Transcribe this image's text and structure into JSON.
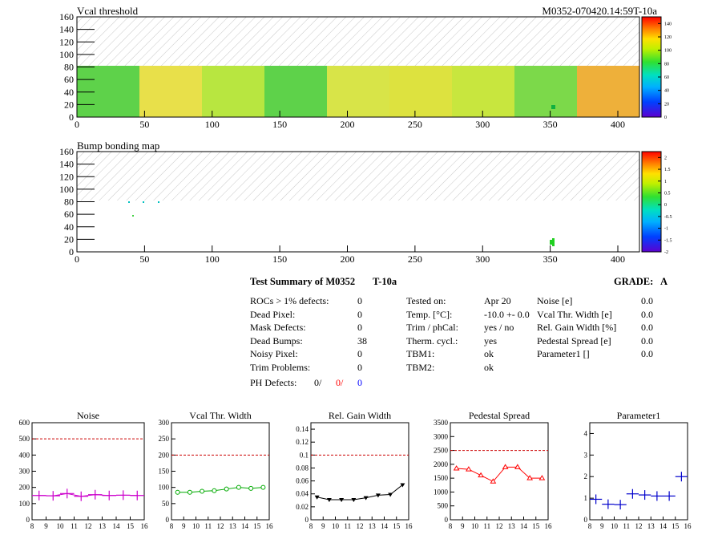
{
  "header_right": "M0352-070420.14:59T-10a",
  "maps": [
    {
      "title": "Vcal threshold",
      "y_ticks": [
        "0",
        "20",
        "40",
        "60",
        "80",
        "100",
        "120",
        "140",
        "160"
      ],
      "x_ticks": [
        "0",
        "50",
        "100",
        "150",
        "200",
        "250",
        "300",
        "350",
        "400"
      ],
      "scale_labels": [
        "0",
        "20",
        "40",
        "60",
        "80",
        "100",
        "120",
        "140"
      ]
    },
    {
      "title": "Bump bonding map",
      "y_ticks": [
        "0",
        "20",
        "40",
        "60",
        "80",
        "100",
        "120",
        "140",
        "160"
      ],
      "x_ticks": [
        "0",
        "50",
        "100",
        "150",
        "200",
        "250",
        "300",
        "350",
        "400"
      ],
      "scale_labels": [
        "-2",
        "-1.5",
        "-1",
        "-0.5",
        "0",
        "0.5",
        "1",
        "1.5",
        "2"
      ]
    }
  ],
  "summary": {
    "title": "Test Summary of M0352",
    "test_id": "T-10a",
    "grade_label": "GRADE:",
    "grade": "A",
    "col1": [
      {
        "label": "ROCs > 1% defects:",
        "value": "0"
      },
      {
        "label": "Dead Pixel:",
        "value": "0"
      },
      {
        "label": "Mask Defects:",
        "value": "0"
      },
      {
        "label": "Dead Bumps:",
        "value": "38"
      },
      {
        "label": "Noisy Pixel:",
        "value": "0"
      },
      {
        "label": "Trim Problems:",
        "value": "0"
      }
    ],
    "ph_defects_label": "PH Defects:",
    "ph_defects": [
      "0/",
      "0/",
      "0"
    ],
    "ph_colors": [
      "#000000",
      "#ff0000",
      "#0000ff"
    ],
    "col2": [
      {
        "label": "Tested on:",
        "value": "Apr 20"
      },
      {
        "label": "Temp. [°C]:",
        "value": "-10.0 +- 0.0"
      },
      {
        "label": "Trim / phCal:",
        "value": "yes / no"
      },
      {
        "label": "Therm. cycl.:",
        "value": "yes"
      },
      {
        "label": "TBM1:",
        "value": "ok"
      },
      {
        "label": "TBM2:",
        "value": "ok"
      }
    ],
    "col3": [
      {
        "label": "Noise [e]",
        "value": "0.0"
      },
      {
        "label": "Vcal Thr. Width [e]",
        "value": "0.0"
      },
      {
        "label": "Rel. Gain Width [%]",
        "value": "0.0"
      },
      {
        "label": "Pedestal Spread [e]",
        "value": "0.0"
      },
      {
        "label": "Parameter1 []",
        "value": "0.0"
      }
    ]
  },
  "chart_data": [
    {
      "type": "line",
      "title": "Noise",
      "color": "#cc00cc",
      "style": "cross",
      "x": [
        8.5,
        9.5,
        10.5,
        11.5,
        12.5,
        13.5,
        14.5,
        15.5
      ],
      "values": [
        150,
        148,
        162,
        145,
        155,
        150,
        152,
        150
      ],
      "xlim": [
        8,
        16
      ],
      "ylim": [
        0,
        600
      ],
      "x_ticks": [
        "8",
        "9",
        "10",
        "11",
        "12",
        "13",
        "14",
        "15",
        "16"
      ],
      "y_ticks": [
        "0",
        "100",
        "200",
        "300",
        "400",
        "500",
        "600"
      ],
      "ref_line": 500
    },
    {
      "type": "line",
      "title": "Vcal Thr. Width",
      "color": "#00aa00",
      "style": "circle",
      "x": [
        8.5,
        9.5,
        10.5,
        11.5,
        12.5,
        13.5,
        14.5,
        15.5
      ],
      "values": [
        85,
        85,
        88,
        90,
        95,
        100,
        97,
        100
      ],
      "xlim": [
        8,
        16
      ],
      "ylim": [
        0,
        300
      ],
      "x_ticks": [
        "8",
        "9",
        "10",
        "11",
        "12",
        "13",
        "14",
        "15",
        "16"
      ],
      "y_ticks": [
        "0",
        "50",
        "100",
        "150",
        "200",
        "250",
        "300"
      ],
      "ref_line": 200
    },
    {
      "type": "line",
      "title": "Rel. Gain Width",
      "color": "#000000",
      "style": "triangle",
      "x": [
        8.5,
        9.5,
        10.5,
        11.5,
        12.5,
        13.5,
        14.5,
        15.5
      ],
      "values": [
        0.035,
        0.031,
        0.031,
        0.031,
        0.034,
        0.038,
        0.039,
        0.054
      ],
      "xlim": [
        8,
        16
      ],
      "ylim": [
        0,
        0.15
      ],
      "x_ticks": [
        "8",
        "9",
        "10",
        "11",
        "12",
        "13",
        "14",
        "15",
        "16"
      ],
      "y_ticks": [
        "0",
        "0.02",
        "0.04",
        "0.06",
        "0.08",
        "0.1",
        "0.12",
        "0.14"
      ],
      "ref_line": 0.1
    },
    {
      "type": "line",
      "title": "Pedestal Spread",
      "color": "#ff0000",
      "style": "opentriangle",
      "x": [
        8.5,
        9.5,
        10.5,
        11.5,
        12.5,
        13.5,
        14.5,
        15.5
      ],
      "values": [
        1850,
        1820,
        1600,
        1380,
        1900,
        1900,
        1500,
        1500
      ],
      "xlim": [
        8,
        16
      ],
      "ylim": [
        0,
        3500
      ],
      "x_ticks": [
        "8",
        "9",
        "10",
        "11",
        "12",
        "13",
        "14",
        "15",
        "16"
      ],
      "y_ticks": [
        "0",
        "500",
        "1000",
        "1500",
        "2000",
        "2500",
        "3000",
        "3500"
      ],
      "ref_line": 2500
    },
    {
      "type": "scatter",
      "title": "Parameter1",
      "color": "#0000cc",
      "style": "cross",
      "x": [
        8.5,
        9.5,
        10.5,
        11.5,
        12.5,
        13.5,
        14.5,
        15.5
      ],
      "values": [
        0.95,
        0.72,
        0.7,
        1.2,
        1.15,
        1.1,
        1.1,
        2.0
      ],
      "xlim": [
        8,
        16
      ],
      "ylim": [
        0,
        4.5
      ],
      "x_ticks": [
        "8",
        "9",
        "10",
        "11",
        "12",
        "13",
        "14",
        "15",
        "16"
      ],
      "y_ticks": [
        "0",
        "1",
        "2",
        "3",
        "4"
      ],
      "ref_line": null
    }
  ]
}
